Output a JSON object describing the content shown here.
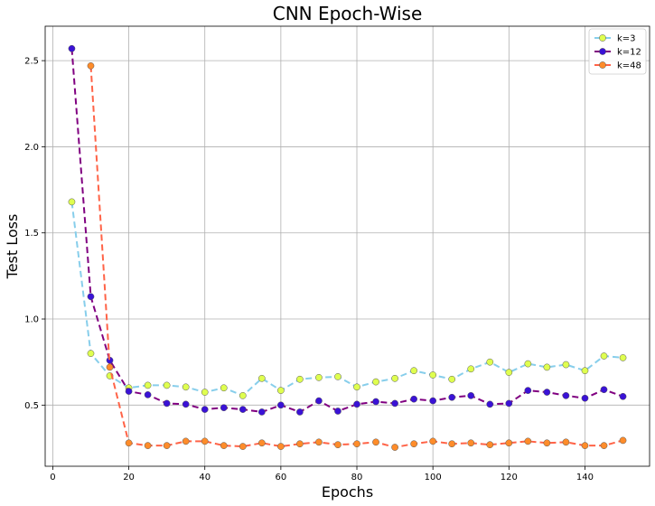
{
  "chart_data": {
    "type": "line",
    "title": "CNN Epoch-Wise",
    "xlabel": "Epochs",
    "ylabel": "Test Loss",
    "xlim": [
      -2,
      157
    ],
    "ylim": [
      0.145,
      2.7
    ],
    "xticks": [
      0,
      20,
      40,
      60,
      80,
      100,
      120,
      140
    ],
    "yticks": [
      0.5,
      1.0,
      1.5,
      2.0,
      2.5
    ],
    "ytick_labels": [
      "0.5",
      "1.0",
      "1.5",
      "2.0",
      "2.5"
    ],
    "grid": true,
    "legend_position": "top-right",
    "series": [
      {
        "name": "k=3",
        "line_color": "#87ceeb",
        "marker_color": "#dfff4f",
        "x": [
          5,
          10,
          15,
          20,
          25,
          30,
          35,
          40,
          45,
          50,
          55,
          60,
          65,
          70,
          75,
          80,
          85,
          90,
          95,
          100,
          105,
          110,
          115,
          120,
          125,
          130,
          135,
          140,
          145,
          150
        ],
        "values": [
          1.68,
          0.8,
          0.67,
          0.6,
          0.615,
          0.615,
          0.605,
          0.575,
          0.6,
          0.555,
          0.655,
          0.585,
          0.65,
          0.66,
          0.665,
          0.605,
          0.635,
          0.655,
          0.7,
          0.675,
          0.65,
          0.71,
          0.75,
          0.69,
          0.74,
          0.72,
          0.735,
          0.7,
          0.785,
          0.775
        ]
      },
      {
        "name": "k=12",
        "line_color": "#800080",
        "marker_color": "#3a12d6",
        "x": [
          5,
          10,
          15,
          20,
          25,
          30,
          35,
          40,
          45,
          50,
          55,
          60,
          65,
          70,
          75,
          80,
          85,
          90,
          95,
          100,
          105,
          110,
          115,
          120,
          125,
          130,
          135,
          140,
          145,
          150
        ],
        "values": [
          2.57,
          1.13,
          0.76,
          0.58,
          0.56,
          0.51,
          0.505,
          0.475,
          0.485,
          0.475,
          0.46,
          0.5,
          0.46,
          0.525,
          0.465,
          0.505,
          0.52,
          0.51,
          0.535,
          0.525,
          0.545,
          0.555,
          0.505,
          0.51,
          0.585,
          0.575,
          0.555,
          0.54,
          0.59,
          0.55
        ]
      },
      {
        "name": "k=48",
        "line_color": "#ff6347",
        "marker_color": "#ff8c2a",
        "x": [
          10,
          15,
          20,
          25,
          30,
          35,
          40,
          45,
          50,
          55,
          60,
          65,
          70,
          75,
          80,
          85,
          90,
          95,
          100,
          105,
          110,
          115,
          120,
          125,
          130,
          135,
          140,
          145,
          150
        ],
        "values": [
          2.47,
          0.72,
          0.28,
          0.265,
          0.265,
          0.29,
          0.29,
          0.265,
          0.26,
          0.28,
          0.26,
          0.275,
          0.285,
          0.27,
          0.275,
          0.285,
          0.255,
          0.275,
          0.29,
          0.275,
          0.28,
          0.27,
          0.28,
          0.29,
          0.28,
          0.285,
          0.265,
          0.265,
          0.295
        ]
      }
    ]
  }
}
